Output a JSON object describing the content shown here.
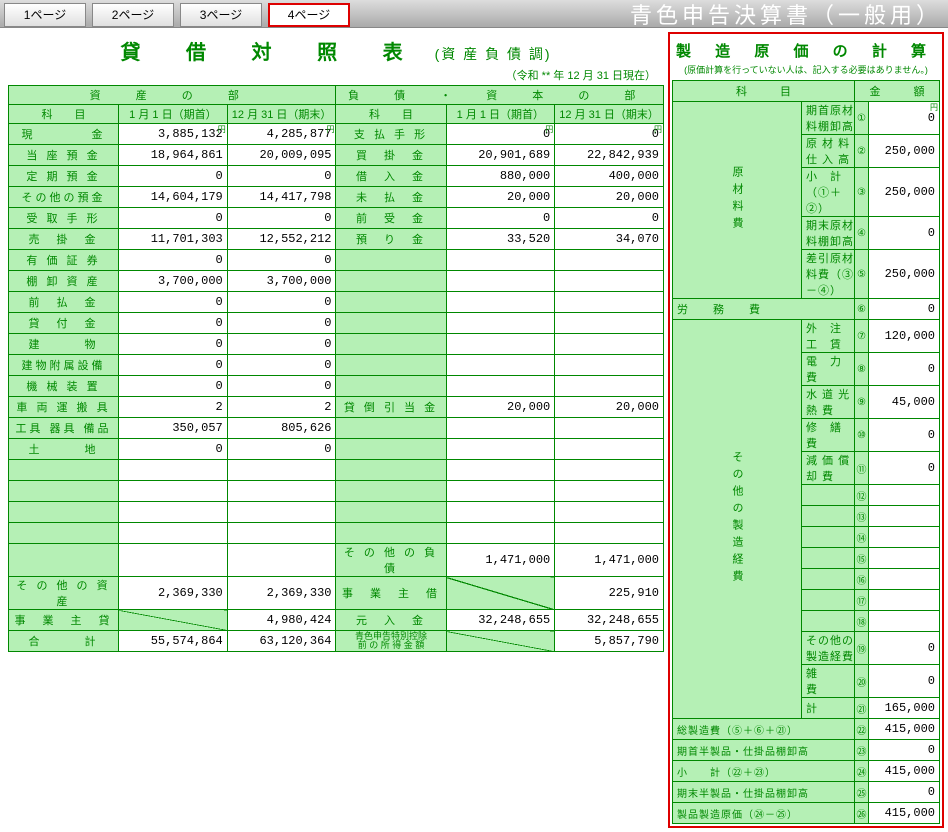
{
  "tabs": [
    "1ページ",
    "2ページ",
    "3ページ",
    "4ページ"
  ],
  "activeTab": 3,
  "pageTitle": "青色申告決算書（一般用）",
  "bs": {
    "title": "貸 借 対 照 表",
    "subtitle": "(資 産 負 債 調)",
    "dateNote": "（令和 ** 年 12 月 31 日現在）",
    "sectionA": "資 産 の 部",
    "sectionL": "負 債 ・ 資 本 の 部",
    "col1": "科　　目",
    "col2": "1 月 1 日（期首）",
    "col3": "12 月 31 日（期末）",
    "assets": [
      {
        "l": "現　　　　金",
        "a": "3,885,132",
        "b": "4,285,877"
      },
      {
        "l": "当 座 預 金",
        "a": "18,964,861",
        "b": "20,009,095"
      },
      {
        "l": "定 期 預 金",
        "a": "0",
        "b": "0"
      },
      {
        "l": "その他の預金",
        "a": "14,604,179",
        "b": "14,417,798"
      },
      {
        "l": "受 取 手 形",
        "a": "0",
        "b": "0"
      },
      {
        "l": "売　掛　金",
        "a": "11,701,303",
        "b": "12,552,212"
      },
      {
        "l": "有 価 証 券",
        "a": "0",
        "b": "0"
      },
      {
        "l": "棚 卸 資 産",
        "a": "3,700,000",
        "b": "3,700,000"
      },
      {
        "l": "前　払　金",
        "a": "0",
        "b": "0"
      },
      {
        "l": "貸　付　金",
        "a": "0",
        "b": "0"
      },
      {
        "l": "建　　　物",
        "a": "0",
        "b": "0"
      },
      {
        "l": "建物附属設備",
        "a": "0",
        "b": "0"
      },
      {
        "l": "機 械 装 置",
        "a": "0",
        "b": "0"
      },
      {
        "l": "車 両 運 搬 具",
        "a": "2",
        "b": "2"
      },
      {
        "l": "工具 器具 備品",
        "a": "350,057",
        "b": "805,626"
      },
      {
        "l": "土　　　地",
        "a": "0",
        "b": "0"
      }
    ],
    "assetsBlank": 5,
    "assetsOther": {
      "l": "そ の 他 の 資 産",
      "a": "2,369,330",
      "b": "2,369,330"
    },
    "owner": {
      "l": "事　業　主　貸",
      "b": "4,980,424"
    },
    "assetsTotal": {
      "l": "合　　　計",
      "a": "55,574,864",
      "b": "63,120,364"
    },
    "liab": [
      {
        "l": "支 払 手 形",
        "a": "0",
        "b": "0"
      },
      {
        "l": "買　掛　金",
        "a": "20,901,689",
        "b": "22,842,939"
      },
      {
        "l": "借　入　金",
        "a": "880,000",
        "b": "400,000"
      },
      {
        "l": "未　払　金",
        "a": "20,000",
        "b": "20,000"
      },
      {
        "l": "前　受　金",
        "a": "0",
        "b": "0"
      },
      {
        "l": "預　り　金",
        "a": "33,520",
        "b": "34,070"
      }
    ],
    "lrow7": {
      "l": "貸 倒 引 当 金",
      "a": "20,000",
      "b": "20,000"
    },
    "liabBlank1": 7,
    "liabBlank2": 6,
    "liabOther": {
      "l": "そ の 他 の 負 債",
      "a": "1,471,000",
      "b": "1,471,000"
    },
    "ownerLoan": {
      "l": "事　業　主　借",
      "b": "225,910"
    },
    "capital": {
      "l": "元　入　金",
      "a": "32,248,655",
      "b": "32,248,655"
    },
    "deduct": {
      "l": "青色申告特別控除\n前 の 所 得 金 額",
      "b": "5,857,790"
    },
    "liabTotal": {
      "l": "合　　　計",
      "a": "55,574,864",
      "b": "63,120,364"
    }
  },
  "mc": {
    "title": "製 造 原 価 の 計 算",
    "note": "(原価計算を行っていない人は、記入する必要はありません。)",
    "col1": "科　　　目",
    "col2": "金　　　額",
    "catA": "原材料費",
    "catB": "労務費",
    "catC": "その他の製造経費",
    "rows": [
      {
        "l": "期首原材料棚卸高",
        "n": "①",
        "v": "0"
      },
      {
        "l": "原 材 料 仕 入 高",
        "n": "②",
        "v": "250,000"
      },
      {
        "l": "小　計（①＋②）",
        "n": "③",
        "v": "250,000"
      },
      {
        "l": "期末原材料棚卸高",
        "n": "④",
        "v": "0"
      },
      {
        "l": "差引原材料費（③－④）",
        "n": "⑤",
        "v": "250,000"
      }
    ],
    "labor": {
      "l": "労　　務　　費",
      "n": "⑥",
      "v": "0"
    },
    "exp": [
      {
        "l": "外　注　工　賃",
        "n": "⑦",
        "v": "120,000"
      },
      {
        "l": "電　力　費",
        "n": "⑧",
        "v": "0"
      },
      {
        "l": "水 道 光 熱 費",
        "n": "⑨",
        "v": "45,000"
      },
      {
        "l": "修　繕　費",
        "n": "⑩",
        "v": "0"
      },
      {
        "l": "減 価 償 却 費",
        "n": "⑪",
        "v": "0"
      },
      {
        "l": "",
        "n": "⑫",
        "v": ""
      },
      {
        "l": "",
        "n": "⑬",
        "v": ""
      },
      {
        "l": "",
        "n": "⑭",
        "v": ""
      },
      {
        "l": "",
        "n": "⑮",
        "v": ""
      },
      {
        "l": "",
        "n": "⑯",
        "v": ""
      },
      {
        "l": "",
        "n": "⑰",
        "v": ""
      },
      {
        "l": "",
        "n": "⑱",
        "v": ""
      },
      {
        "l": "その他の製造経費",
        "n": "⑲",
        "v": "0"
      },
      {
        "l": "雑　　　費",
        "n": "⑳",
        "v": "0"
      },
      {
        "l": "計",
        "n": "㉑",
        "v": "165,000"
      }
    ],
    "totals": [
      {
        "l": "総製造費（⑤＋⑥＋㉑）",
        "n": "㉒",
        "v": "415,000"
      },
      {
        "l": "期首半製品・仕掛品棚卸高",
        "n": "㉓",
        "v": "0"
      },
      {
        "l": "小　　計（㉒＋㉓）",
        "n": "㉔",
        "v": "415,000"
      },
      {
        "l": "期末半製品・仕掛品棚卸高",
        "n": "㉕",
        "v": "0"
      },
      {
        "l": "製品製造原価（㉔－㉕）",
        "n": "㉖",
        "v": "415,000"
      }
    ]
  }
}
